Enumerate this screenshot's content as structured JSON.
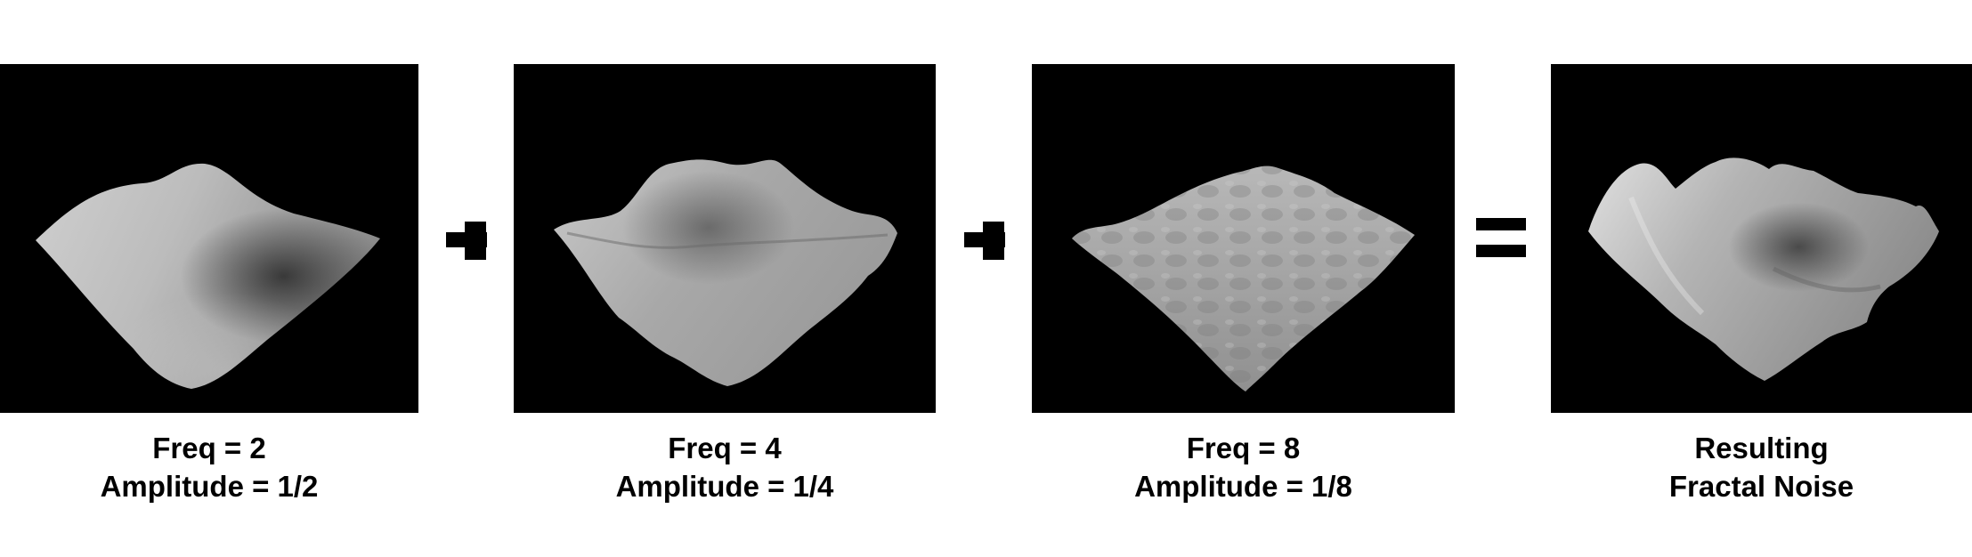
{
  "panels": [
    {
      "line1": "Freq = 2",
      "line2": "Amplitude = 1/2"
    },
    {
      "line1": "Freq = 4",
      "line2": "Amplitude = 1/4"
    },
    {
      "line1": "Freq = 8",
      "line2": "Amplitude = 1/8"
    },
    {
      "line1": "Resulting",
      "line2": "Fractal Noise"
    }
  ],
  "operators": [
    "plus-icon",
    "plus-icon",
    "equals-icon"
  ],
  "colors": {
    "panel_background": "#000000",
    "surface_light": "#d8d8d8",
    "surface_dark": "#3c3c3c",
    "text": "#000000"
  }
}
